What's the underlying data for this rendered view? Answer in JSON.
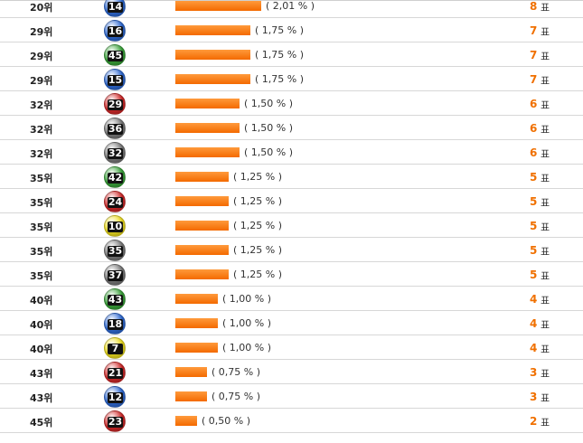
{
  "unit_label": "표",
  "rows": [
    {
      "rank": "20위",
      "ball": "14",
      "ball_color": "#2f6bd6",
      "percent_text": "( 2,01 % )",
      "percent": 2.01,
      "votes": "8"
    },
    {
      "rank": "29위",
      "ball": "16",
      "ball_color": "#2f6bd6",
      "percent_text": "( 1,75 % )",
      "percent": 1.75,
      "votes": "7"
    },
    {
      "rank": "29위",
      "ball": "45",
      "ball_color": "#3aa53a",
      "percent_text": "( 1,75 % )",
      "percent": 1.75,
      "votes": "7"
    },
    {
      "rank": "29위",
      "ball": "15",
      "ball_color": "#2f6bd6",
      "percent_text": "( 1,75 % )",
      "percent": 1.75,
      "votes": "7"
    },
    {
      "rank": "32위",
      "ball": "29",
      "ball_color": "#d42a2a",
      "percent_text": "( 1,50 % )",
      "percent": 1.5,
      "votes": "6"
    },
    {
      "rank": "32위",
      "ball": "36",
      "ball_color": "#7a7a7a",
      "percent_text": "( 1,50 % )",
      "percent": 1.5,
      "votes": "6"
    },
    {
      "rank": "32위",
      "ball": "32",
      "ball_color": "#7a7a7a",
      "percent_text": "( 1,50 % )",
      "percent": 1.5,
      "votes": "6"
    },
    {
      "rank": "35위",
      "ball": "42",
      "ball_color": "#3aa53a",
      "percent_text": "( 1,25 % )",
      "percent": 1.25,
      "votes": "5"
    },
    {
      "rank": "35위",
      "ball": "24",
      "ball_color": "#d42a2a",
      "percent_text": "( 1,25 % )",
      "percent": 1.25,
      "votes": "5"
    },
    {
      "rank": "35위",
      "ball": "10",
      "ball_color": "#f0e020",
      "percent_text": "( 1,25 % )",
      "percent": 1.25,
      "votes": "5"
    },
    {
      "rank": "35위",
      "ball": "35",
      "ball_color": "#7a7a7a",
      "percent_text": "( 1,25 % )",
      "percent": 1.25,
      "votes": "5"
    },
    {
      "rank": "35위",
      "ball": "37",
      "ball_color": "#7a7a7a",
      "percent_text": "( 1,25 % )",
      "percent": 1.25,
      "votes": "5"
    },
    {
      "rank": "40위",
      "ball": "43",
      "ball_color": "#3aa53a",
      "percent_text": "( 1,00 % )",
      "percent": 1.0,
      "votes": "4"
    },
    {
      "rank": "40위",
      "ball": "18",
      "ball_color": "#2f6bd6",
      "percent_text": "( 1,00 % )",
      "percent": 1.0,
      "votes": "4"
    },
    {
      "rank": "40위",
      "ball": "7",
      "ball_color": "#f0e020",
      "percent_text": "( 1,00 % )",
      "percent": 1.0,
      "votes": "4"
    },
    {
      "rank": "43위",
      "ball": "21",
      "ball_color": "#d42a2a",
      "percent_text": "( 0,75 % )",
      "percent": 0.75,
      "votes": "3"
    },
    {
      "rank": "43위",
      "ball": "12",
      "ball_color": "#2f6bd6",
      "percent_text": "( 0,75 % )",
      "percent": 0.75,
      "votes": "3"
    },
    {
      "rank": "45위",
      "ball": "23",
      "ball_color": "#d42a2a",
      "percent_text": "( 0,50 % )",
      "percent": 0.5,
      "votes": "2"
    }
  ]
}
